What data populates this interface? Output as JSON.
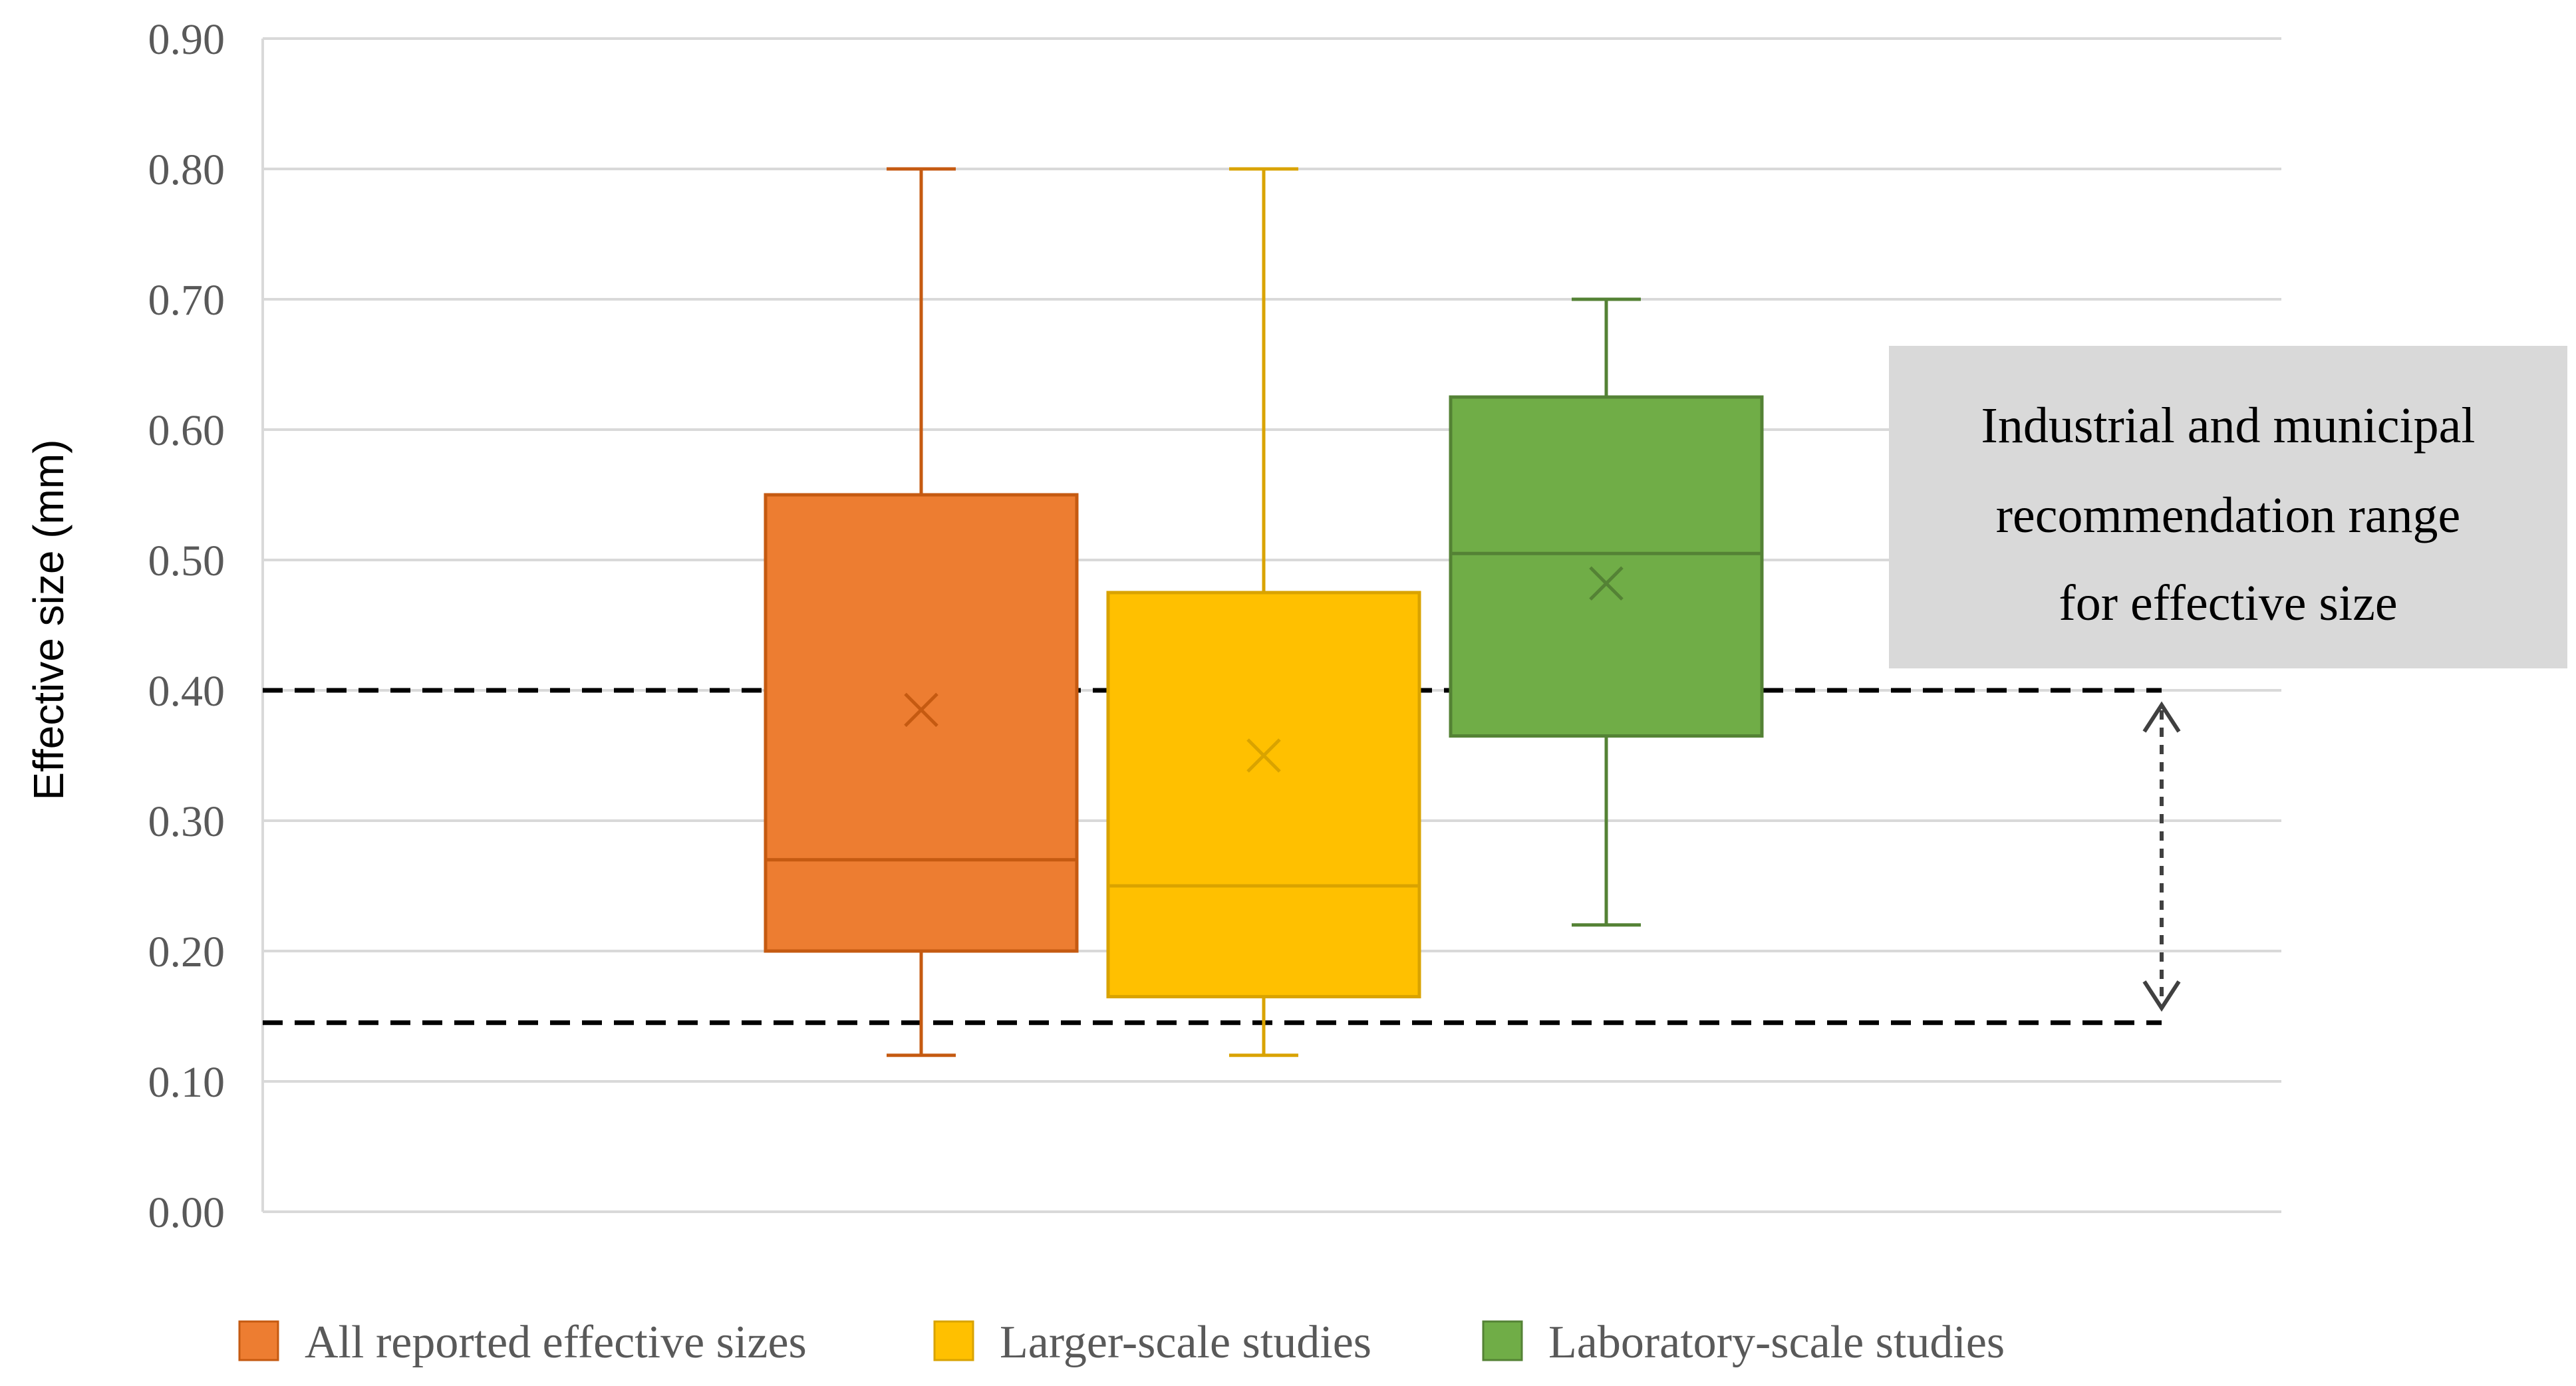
{
  "chart_data": {
    "type": "boxplot",
    "title": "",
    "xlabel": "",
    "ylabel": "Effective size (mm)",
    "ylim": [
      0,
      0.9
    ],
    "yticks": [
      "0.00",
      "0.10",
      "0.20",
      "0.30",
      "0.40",
      "0.50",
      "0.60",
      "0.70",
      "0.80",
      "0.90"
    ],
    "grid": true,
    "legend_position": "bottom",
    "series": [
      {
        "name": "All reported effective sizes",
        "color": "#ED7D31",
        "stroke": "#C55A11",
        "min": 0.12,
        "q1": 0.2,
        "median": 0.27,
        "q3": 0.55,
        "max": 0.8,
        "mean": 0.385
      },
      {
        "name": "Larger-scale studies",
        "color": "#FFC000",
        "stroke": "#D9A300",
        "min": 0.12,
        "q1": 0.165,
        "median": 0.25,
        "q3": 0.475,
        "max": 0.8,
        "mean": 0.35
      },
      {
        "name": "Laboratory-scale studies",
        "color": "#70AD47",
        "stroke": "#548235",
        "min": 0.22,
        "q1": 0.365,
        "median": 0.505,
        "q3": 0.625,
        "max": 0.7,
        "mean": 0.482
      }
    ],
    "reference_range": {
      "low": 0.145,
      "high": 0.4,
      "style": "dashed"
    },
    "annotation": {
      "lines": [
        "Industrial and municipal",
        "recommendation range",
        "for effective size"
      ],
      "box_color": "#D9D9D9"
    }
  }
}
